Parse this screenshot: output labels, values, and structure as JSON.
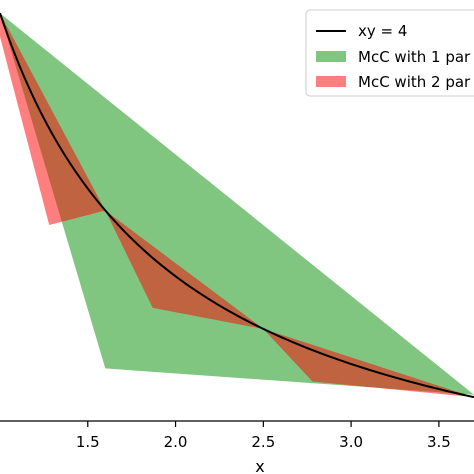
{
  "chart_data": {
    "type": "area",
    "title": "",
    "xlabel": "x",
    "ylabel": "",
    "xlim": [
      1.0,
      3.7
    ],
    "ylim": [
      0.9,
      4.1
    ],
    "xticks": [
      1.5,
      2.0,
      2.5,
      3.0,
      3.5
    ],
    "xtick_labels": [
      "1.5",
      "2.0",
      "2.5",
      "3.0",
      "3.5"
    ],
    "grid": false,
    "legend_position": "top-right",
    "series": [
      {
        "name": "xy = 4",
        "kind": "line",
        "color": "#000000",
        "function": "y = 4 / x",
        "x_range": [
          1.0,
          3.7
        ]
      },
      {
        "name": "McC with 1 par",
        "kind": "region",
        "color": "#2ca02c",
        "polygon": [
          [
            1.0,
            4.0
          ],
          [
            1.6,
            1.3
          ],
          [
            3.7,
            1.1
          ]
        ]
      },
      {
        "name": "McC with 2 par",
        "kind": "region",
        "color": "#ff0000",
        "polygon": [
          [
            1.0,
            3.82
          ],
          [
            1.28,
            2.39
          ],
          [
            1.6,
            2.5
          ],
          [
            1.87,
            1.76
          ],
          [
            2.5,
            1.6
          ],
          [
            2.78,
            1.2
          ],
          [
            3.7,
            1.08
          ],
          [
            2.5,
            1.6
          ],
          [
            1.6,
            2.5
          ],
          [
            1.0,
            4.0
          ]
        ]
      }
    ]
  }
}
